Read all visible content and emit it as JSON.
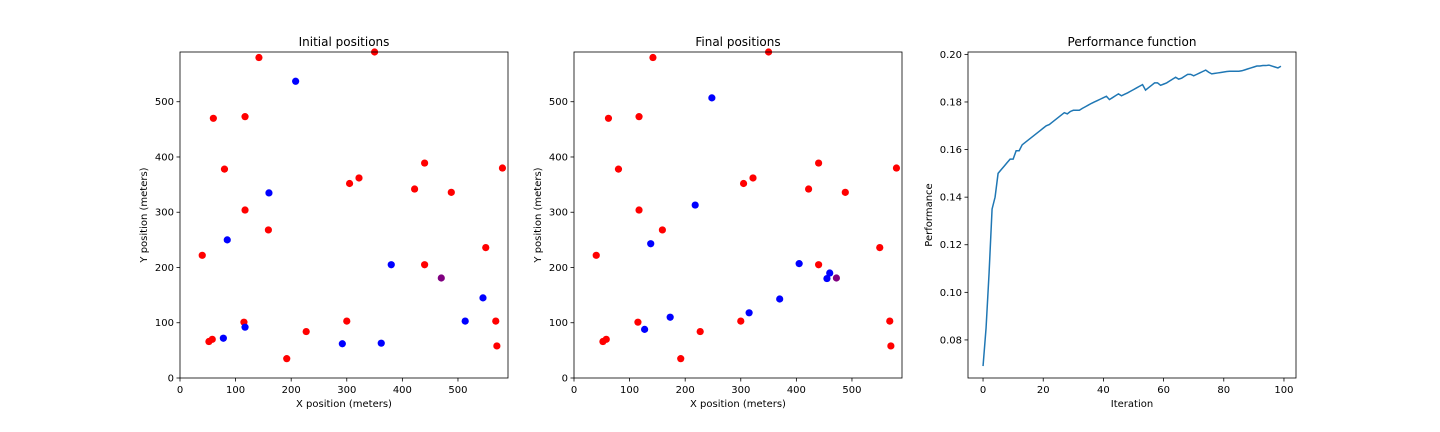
{
  "colors": {
    "red": "#ff0000",
    "blue": "#0000ff",
    "purple": "#800080",
    "line": "#1f77b4"
  },
  "chart_data": [
    {
      "type": "scatter",
      "title": "Initial positions",
      "xlabel": "X position (meters)",
      "ylabel": "Y position (meters)",
      "xlim": [
        0,
        590
      ],
      "ylim": [
        0,
        590
      ],
      "xticks": [
        0,
        100,
        200,
        300,
        400,
        500
      ],
      "yticks": [
        0,
        100,
        200,
        300,
        400,
        500
      ],
      "series": [
        {
          "color": "red",
          "points": [
            [
              40,
              222
            ],
            [
              60,
              470
            ],
            [
              117,
              473
            ],
            [
              80,
              378
            ],
            [
              117,
              304
            ],
            [
              159,
              268
            ],
            [
              142,
              580
            ],
            [
              350,
              590
            ],
            [
              305,
              352
            ],
            [
              322,
              362
            ],
            [
              422,
              342
            ],
            [
              440,
              389
            ],
            [
              488,
              336
            ],
            [
              550,
              236
            ],
            [
              440,
              205
            ],
            [
              115,
              101
            ],
            [
              58,
              70
            ],
            [
              52,
              66
            ],
            [
              192,
              35
            ],
            [
              227,
              84
            ],
            [
              300,
              103
            ],
            [
              568,
              103
            ],
            [
              570,
              58
            ],
            [
              580,
              380
            ]
          ]
        },
        {
          "color": "blue",
          "points": [
            [
              208,
              537
            ],
            [
              160,
              335
            ],
            [
              85,
              250
            ],
            [
              380,
              205
            ],
            [
              545,
              145
            ],
            [
              513,
              103
            ],
            [
              292,
              62
            ],
            [
              362,
              63
            ],
            [
              117,
              92
            ],
            [
              78,
              72
            ]
          ]
        },
        {
          "color": "purple",
          "points": [
            [
              470,
              181
            ]
          ]
        }
      ]
    },
    {
      "type": "scatter",
      "title": "Final positions",
      "xlabel": "X position (meters)",
      "ylabel": "Y position (meters)",
      "xlim": [
        0,
        590
      ],
      "ylim": [
        0,
        590
      ],
      "xticks": [
        0,
        100,
        200,
        300,
        400,
        500
      ],
      "yticks": [
        0,
        100,
        200,
        300,
        400,
        500
      ],
      "series": [
        {
          "color": "red",
          "points": [
            [
              40,
              222
            ],
            [
              62,
              470
            ],
            [
              117,
              473
            ],
            [
              80,
              378
            ],
            [
              117,
              304
            ],
            [
              159,
              268
            ],
            [
              142,
              580
            ],
            [
              350,
              590
            ],
            [
              305,
              352
            ],
            [
              322,
              362
            ],
            [
              422,
              342
            ],
            [
              440,
              389
            ],
            [
              488,
              336
            ],
            [
              550,
              236
            ],
            [
              440,
              205
            ],
            [
              115,
              101
            ],
            [
              58,
              70
            ],
            [
              52,
              66
            ],
            [
              192,
              35
            ],
            [
              227,
              84
            ],
            [
              300,
              103
            ],
            [
              568,
              103
            ],
            [
              570,
              58
            ],
            [
              580,
              380
            ]
          ]
        },
        {
          "color": "blue",
          "points": [
            [
              248,
              507
            ],
            [
              218,
              313
            ],
            [
              138,
              243
            ],
            [
              405,
              207
            ],
            [
              460,
              190
            ],
            [
              455,
              180
            ],
            [
              370,
              143
            ],
            [
              315,
              118
            ],
            [
              173,
              110
            ],
            [
              127,
              88
            ]
          ]
        },
        {
          "color": "purple",
          "points": [
            [
              472,
              181
            ]
          ]
        }
      ]
    },
    {
      "type": "line",
      "title": "Performance function",
      "xlabel": "Iteration",
      "ylabel": "Performance",
      "xlim": [
        -5,
        104
      ],
      "ylim": [
        0.064,
        0.201
      ],
      "xticks": [
        0,
        20,
        40,
        60,
        80,
        100
      ],
      "yticks": [
        "0.08",
        "0.10",
        "0.12",
        "0.14",
        "0.16",
        "0.18",
        "0.20"
      ],
      "series": [
        {
          "color": "line",
          "x": [
            0,
            1,
            2,
            3,
            4,
            5,
            6,
            7,
            8,
            9,
            10,
            11,
            12,
            13,
            14,
            15,
            16,
            17,
            18,
            19,
            20,
            21,
            22,
            23,
            24,
            25,
            26,
            27,
            28,
            29,
            30,
            31,
            32,
            33,
            34,
            35,
            36,
            37,
            38,
            39,
            40,
            41,
            42,
            43,
            44,
            45,
            46,
            47,
            48,
            49,
            50,
            51,
            52,
            53,
            54,
            55,
            56,
            57,
            58,
            59,
            60,
            61,
            62,
            63,
            64,
            65,
            66,
            67,
            68,
            69,
            70,
            71,
            72,
            73,
            74,
            75,
            76,
            77,
            78,
            79,
            80,
            81,
            82,
            83,
            84,
            85,
            86,
            87,
            88,
            89,
            90,
            91,
            92,
            93,
            94,
            95,
            96,
            97,
            98,
            99
          ],
          "y": [
            0.069,
            0.085,
            0.108,
            0.135,
            0.14,
            0.15,
            0.1515,
            0.153,
            0.1545,
            0.156,
            0.156,
            0.1595,
            0.1595,
            0.162,
            0.163,
            0.164,
            0.165,
            0.166,
            0.167,
            0.168,
            0.169,
            0.17,
            0.1705,
            0.1715,
            0.1725,
            0.1735,
            0.1745,
            0.1755,
            0.175,
            0.176,
            0.1765,
            0.1765,
            0.1765,
            0.1773,
            0.178,
            0.1787,
            0.1794,
            0.18,
            0.1806,
            0.1812,
            0.1818,
            0.1824,
            0.181,
            0.1818,
            0.1826,
            0.1834,
            0.1826,
            0.1832,
            0.1838,
            0.1845,
            0.1852,
            0.1859,
            0.1866,
            0.1873,
            0.185,
            0.186,
            0.187,
            0.188,
            0.188,
            0.187,
            0.1875,
            0.188,
            0.1888,
            0.1896,
            0.1904,
            0.1896,
            0.19,
            0.1908,
            0.1916,
            0.1916,
            0.191,
            0.1916,
            0.1922,
            0.1928,
            0.1934,
            0.1925,
            0.1918,
            0.192,
            0.1922,
            0.1924,
            0.1926,
            0.1928,
            0.1929,
            0.1929,
            0.1929,
            0.1929,
            0.1931,
            0.1935,
            0.1939,
            0.1943,
            0.1947,
            0.1951,
            0.1951,
            0.1953,
            0.1953,
            0.1955,
            0.1951,
            0.1947,
            0.1943,
            0.195
          ]
        }
      ]
    }
  ]
}
